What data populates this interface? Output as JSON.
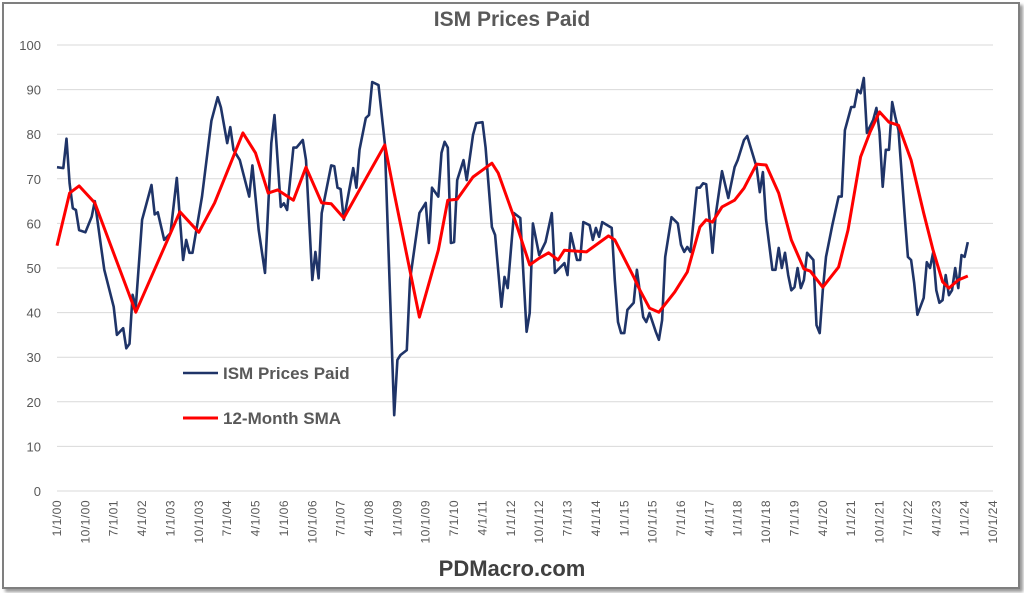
{
  "chart_data": {
    "type": "line",
    "title": "ISM Prices Paid",
    "xlabel": "",
    "ylabel": "",
    "ylim": [
      0,
      100
    ],
    "yticks": [
      "0",
      "10",
      "20",
      "30",
      "40",
      "50",
      "60",
      "70",
      "80",
      "90",
      "100"
    ],
    "xlim": [
      "2000-01",
      "2024-10"
    ],
    "xticks": [
      "1/1/00",
      "10/1/00",
      "7/1/01",
      "4/1/02",
      "1/1/03",
      "10/1/03",
      "7/1/04",
      "4/1/05",
      "1/1/06",
      "10/1/06",
      "7/1/07",
      "4/1/08",
      "1/1/09",
      "10/1/09",
      "7/1/10",
      "4/1/11",
      "1/1/12",
      "10/1/12",
      "7/1/13",
      "4/1/14",
      "1/1/15",
      "10/1/15",
      "7/1/16",
      "4/1/17",
      "1/1/18",
      "10/1/18",
      "7/1/19",
      "4/1/20",
      "1/1/21",
      "10/1/21",
      "7/1/22",
      "4/1/23",
      "1/1/24",
      "10/1/24"
    ],
    "grid": "horizontal",
    "legend_position": "lower-left-inside",
    "series": [
      {
        "name": "ISM Prices Paid",
        "color": "#1f3468",
        "points": [
          [
            "2000-01",
            72.6
          ],
          [
            "2000-03",
            72.4
          ],
          [
            "2000-04",
            79
          ],
          [
            "2000-05",
            69
          ],
          [
            "2000-06",
            63.4
          ],
          [
            "2000-07",
            63
          ],
          [
            "2000-08",
            58.5
          ],
          [
            "2000-10",
            58
          ],
          [
            "2000-12",
            61.5
          ],
          [
            "2001-01",
            65
          ],
          [
            "2001-03",
            54.7
          ],
          [
            "2001-04",
            49.6
          ],
          [
            "2001-07",
            41.3
          ],
          [
            "2001-08",
            35
          ],
          [
            "2001-10",
            36.5
          ],
          [
            "2001-11",
            32
          ],
          [
            "2001-12",
            33
          ],
          [
            "2002-01",
            44
          ],
          [
            "2002-02",
            41.3
          ],
          [
            "2002-04",
            60.8
          ],
          [
            "2002-07",
            68.6
          ],
          [
            "2002-08",
            62
          ],
          [
            "2002-09",
            62.5
          ],
          [
            "2002-11",
            56.3
          ],
          [
            "2003-01",
            57.8
          ],
          [
            "2003-03",
            70.2
          ],
          [
            "2003-05",
            51.8
          ],
          [
            "2003-06",
            56.3
          ],
          [
            "2003-07",
            53.4
          ],
          [
            "2003-08",
            53.4
          ],
          [
            "2003-11",
            66
          ],
          [
            "2004-02",
            83
          ],
          [
            "2004-04",
            88.3
          ],
          [
            "2004-05",
            86
          ],
          [
            "2004-07",
            78
          ],
          [
            "2004-08",
            81.6
          ],
          [
            "2004-09",
            76.5
          ],
          [
            "2004-11",
            74.2
          ],
          [
            "2005-02",
            66
          ],
          [
            "2005-03",
            73
          ],
          [
            "2005-05",
            58.5
          ],
          [
            "2005-07",
            48.9
          ],
          [
            "2005-09",
            78
          ],
          [
            "2005-10",
            84.3
          ],
          [
            "2005-12",
            63.7
          ],
          [
            "2006-01",
            64.5
          ],
          [
            "2006-02",
            63
          ],
          [
            "2006-04",
            77
          ],
          [
            "2006-05",
            77
          ],
          [
            "2006-07",
            78.7
          ],
          [
            "2006-08",
            74.2
          ],
          [
            "2006-10",
            47.3
          ],
          [
            "2006-11",
            53.6
          ],
          [
            "2006-12",
            47.7
          ],
          [
            "2007-01",
            62.3
          ],
          [
            "2007-04",
            73
          ],
          [
            "2007-05",
            72.8
          ],
          [
            "2007-06",
            68
          ],
          [
            "2007-07",
            67.7
          ],
          [
            "2007-08",
            60.8
          ],
          [
            "2007-11",
            72.4
          ],
          [
            "2007-12",
            68
          ],
          [
            "2008-01",
            76.5
          ],
          [
            "2008-03",
            83.6
          ],
          [
            "2008-04",
            84.3
          ],
          [
            "2008-05",
            91.7
          ],
          [
            "2008-07",
            91
          ],
          [
            "2008-09",
            78
          ],
          [
            "2008-12",
            17
          ],
          [
            "2009-01",
            29.4
          ],
          [
            "2009-02",
            30.5
          ],
          [
            "2009-04",
            31.6
          ],
          [
            "2009-05",
            47.3
          ],
          [
            "2009-08",
            62.3
          ],
          [
            "2009-10",
            64.6
          ],
          [
            "2009-11",
            55.6
          ],
          [
            "2009-12",
            68
          ],
          [
            "2010-02",
            66
          ],
          [
            "2010-03",
            75.8
          ],
          [
            "2010-04",
            78.3
          ],
          [
            "2010-05",
            77
          ],
          [
            "2010-06",
            55.6
          ],
          [
            "2010-07",
            55.8
          ],
          [
            "2010-08",
            69.7
          ],
          [
            "2010-10",
            74.2
          ],
          [
            "2010-11",
            69.7
          ],
          [
            "2011-01",
            79.8
          ],
          [
            "2011-02",
            82.5
          ],
          [
            "2011-04",
            82.7
          ],
          [
            "2011-05",
            77
          ],
          [
            "2011-07",
            59.2
          ],
          [
            "2011-08",
            57.4
          ],
          [
            "2011-10",
            41.3
          ],
          [
            "2011-11",
            48
          ],
          [
            "2011-12",
            45.5
          ],
          [
            "2012-02",
            62.3
          ],
          [
            "2012-04",
            61.2
          ],
          [
            "2012-06",
            35.7
          ],
          [
            "2012-07",
            39.9
          ],
          [
            "2012-08",
            60
          ],
          [
            "2012-10",
            52.9
          ],
          [
            "2012-12",
            55.8
          ],
          [
            "2013-02",
            62.3
          ],
          [
            "2013-03",
            48.9
          ],
          [
            "2013-06",
            51.1
          ],
          [
            "2013-07",
            48.4
          ],
          [
            "2013-08",
            57.8
          ],
          [
            "2013-10",
            51.8
          ],
          [
            "2013-11",
            51.8
          ],
          [
            "2013-12",
            60.3
          ],
          [
            "2014-02",
            59.6
          ],
          [
            "2014-03",
            56.3
          ],
          [
            "2014-04",
            59
          ],
          [
            "2014-05",
            57
          ],
          [
            "2014-06",
            60.3
          ],
          [
            "2014-09",
            59
          ],
          [
            "2014-10",
            47.3
          ],
          [
            "2014-11",
            37.9
          ],
          [
            "2014-12",
            35.4
          ],
          [
            "2015-01",
            35.4
          ],
          [
            "2015-02",
            40.6
          ],
          [
            "2015-04",
            42.2
          ],
          [
            "2015-05",
            49.6
          ],
          [
            "2015-07",
            39
          ],
          [
            "2015-08",
            37.9
          ],
          [
            "2015-09",
            39.9
          ],
          [
            "2015-11",
            35.7
          ],
          [
            "2015-12",
            33.9
          ],
          [
            "2016-01",
            38.3
          ],
          [
            "2016-02",
            52.5
          ],
          [
            "2016-04",
            61.4
          ],
          [
            "2016-06",
            60
          ],
          [
            "2016-07",
            55.2
          ],
          [
            "2016-08",
            53.6
          ],
          [
            "2016-09",
            54.7
          ],
          [
            "2016-10",
            53.6
          ],
          [
            "2016-12",
            68
          ],
          [
            "2017-01",
            68
          ],
          [
            "2017-02",
            69
          ],
          [
            "2017-03",
            68.8
          ],
          [
            "2017-04",
            61.4
          ],
          [
            "2017-05",
            53.4
          ],
          [
            "2017-06",
            61.9
          ],
          [
            "2017-08",
            71.7
          ],
          [
            "2017-10",
            65.7
          ],
          [
            "2017-12",
            72.6
          ],
          [
            "2018-01",
            74.2
          ],
          [
            "2018-03",
            78.7
          ],
          [
            "2018-04",
            79.6
          ],
          [
            "2018-06",
            74.9
          ],
          [
            "2018-07",
            72.6
          ],
          [
            "2018-08",
            67
          ],
          [
            "2018-09",
            71.5
          ],
          [
            "2018-10",
            60.8
          ],
          [
            "2018-12",
            49.6
          ],
          [
            "2019-01",
            49.6
          ],
          [
            "2019-02",
            54.5
          ],
          [
            "2019-03",
            50
          ],
          [
            "2019-04",
            53.4
          ],
          [
            "2019-05",
            48.4
          ],
          [
            "2019-06",
            45
          ],
          [
            "2019-07",
            45.7
          ],
          [
            "2019-08",
            50
          ],
          [
            "2019-09",
            45.5
          ],
          [
            "2019-10",
            47.3
          ],
          [
            "2019-11",
            53.4
          ],
          [
            "2020-01",
            51.8
          ],
          [
            "2020-02",
            37.2
          ],
          [
            "2020-03",
            35.4
          ],
          [
            "2020-04",
            45
          ],
          [
            "2020-05",
            52.5
          ],
          [
            "2020-07",
            59.6
          ],
          [
            "2020-09",
            66
          ],
          [
            "2020-10",
            66
          ],
          [
            "2020-11",
            80.9
          ],
          [
            "2021-01",
            86.1
          ],
          [
            "2021-02",
            86.1
          ],
          [
            "2021-03",
            89.9
          ],
          [
            "2021-04",
            89.2
          ],
          [
            "2021-05",
            92.6
          ],
          [
            "2021-06",
            80.3
          ],
          [
            "2021-08",
            83.2
          ],
          [
            "2021-09",
            85.9
          ],
          [
            "2021-10",
            80.5
          ],
          [
            "2021-11",
            68.2
          ],
          [
            "2021-12",
            76.5
          ],
          [
            "2022-01",
            76.5
          ],
          [
            "2022-02",
            87.2
          ],
          [
            "2022-03",
            83.9
          ],
          [
            "2022-04",
            80.9
          ],
          [
            "2022-06",
            61.4
          ],
          [
            "2022-07",
            52.5
          ],
          [
            "2022-08",
            51.8
          ],
          [
            "2022-09",
            46.6
          ],
          [
            "2022-10",
            39.5
          ],
          [
            "2022-12",
            43.3
          ],
          [
            "2023-01",
            51.3
          ],
          [
            "2023-02",
            50
          ],
          [
            "2023-03",
            53.4
          ],
          [
            "2023-04",
            45
          ],
          [
            "2023-05",
            42.2
          ],
          [
            "2023-06",
            42.8
          ],
          [
            "2023-07",
            48.4
          ],
          [
            "2023-08",
            43.9
          ],
          [
            "2023-09",
            45
          ],
          [
            "2023-10",
            50
          ],
          [
            "2023-11",
            45.5
          ],
          [
            "2023-12",
            52.9
          ],
          [
            "2024-01",
            52.5
          ],
          [
            "2024-02",
            55.8
          ]
        ]
      },
      {
        "name": "12-Month SMA",
        "color": "#ff0000",
        "points": [
          [
            "2000-01",
            55
          ],
          [
            "2000-05",
            66.8
          ],
          [
            "2000-08",
            68.4
          ],
          [
            "2001-01",
            64.6
          ],
          [
            "2002-02",
            40.1
          ],
          [
            "2003-04",
            62.6
          ],
          [
            "2003-10",
            58
          ],
          [
            "2004-03",
            64.6
          ],
          [
            "2004-12",
            80.3
          ],
          [
            "2005-04",
            75.8
          ],
          [
            "2005-08",
            66.8
          ],
          [
            "2005-11",
            67.5
          ],
          [
            "2006-04",
            65.2
          ],
          [
            "2006-08",
            72.6
          ],
          [
            "2007-01",
            64.6
          ],
          [
            "2007-04",
            64.4
          ],
          [
            "2007-08",
            61.2
          ],
          [
            "2008-04",
            71.3
          ],
          [
            "2008-09",
            77.6
          ],
          [
            "2008-12",
            66.8
          ],
          [
            "2009-08",
            39
          ],
          [
            "2010-02",
            54
          ],
          [
            "2010-05",
            65.2
          ],
          [
            "2010-08",
            65.4
          ],
          [
            "2011-01",
            70.4
          ],
          [
            "2011-07",
            73.5
          ],
          [
            "2011-09",
            71.3
          ],
          [
            "2012-02",
            61.4
          ],
          [
            "2012-07",
            50.7
          ],
          [
            "2012-10",
            52.2
          ],
          [
            "2013-01",
            53.4
          ],
          [
            "2013-04",
            51.8
          ],
          [
            "2013-06",
            54
          ],
          [
            "2014-01",
            53.6
          ],
          [
            "2014-08",
            57.2
          ],
          [
            "2014-10",
            56.3
          ],
          [
            "2015-04",
            48
          ],
          [
            "2015-06",
            45
          ],
          [
            "2015-09",
            41
          ],
          [
            "2015-12",
            40.1
          ],
          [
            "2016-05",
            44.6
          ],
          [
            "2016-09",
            49.1
          ],
          [
            "2017-01",
            59.2
          ],
          [
            "2017-03",
            60.8
          ],
          [
            "2017-05",
            60.3
          ],
          [
            "2017-08",
            63.7
          ],
          [
            "2017-12",
            65.2
          ],
          [
            "2018-03",
            67.9
          ],
          [
            "2018-07",
            73.3
          ],
          [
            "2018-10",
            73.1
          ],
          [
            "2019-02",
            66.8
          ],
          [
            "2019-06",
            56.3
          ],
          [
            "2019-10",
            49.8
          ],
          [
            "2019-12",
            49.3
          ],
          [
            "2020-04",
            45.7
          ],
          [
            "2020-09",
            50.2
          ],
          [
            "2020-12",
            58.5
          ],
          [
            "2021-04",
            74.9
          ],
          [
            "2021-07",
            80.5
          ],
          [
            "2021-10",
            85
          ],
          [
            "2022-01",
            82.7
          ],
          [
            "2022-04",
            82
          ],
          [
            "2022-08",
            74.2
          ],
          [
            "2022-12",
            62.3
          ],
          [
            "2023-03",
            54
          ],
          [
            "2023-06",
            46.9
          ],
          [
            "2023-08",
            45.5
          ],
          [
            "2023-11",
            47.3
          ],
          [
            "2024-02",
            48.2
          ]
        ]
      }
    ]
  },
  "footer": "PDMacro.com"
}
